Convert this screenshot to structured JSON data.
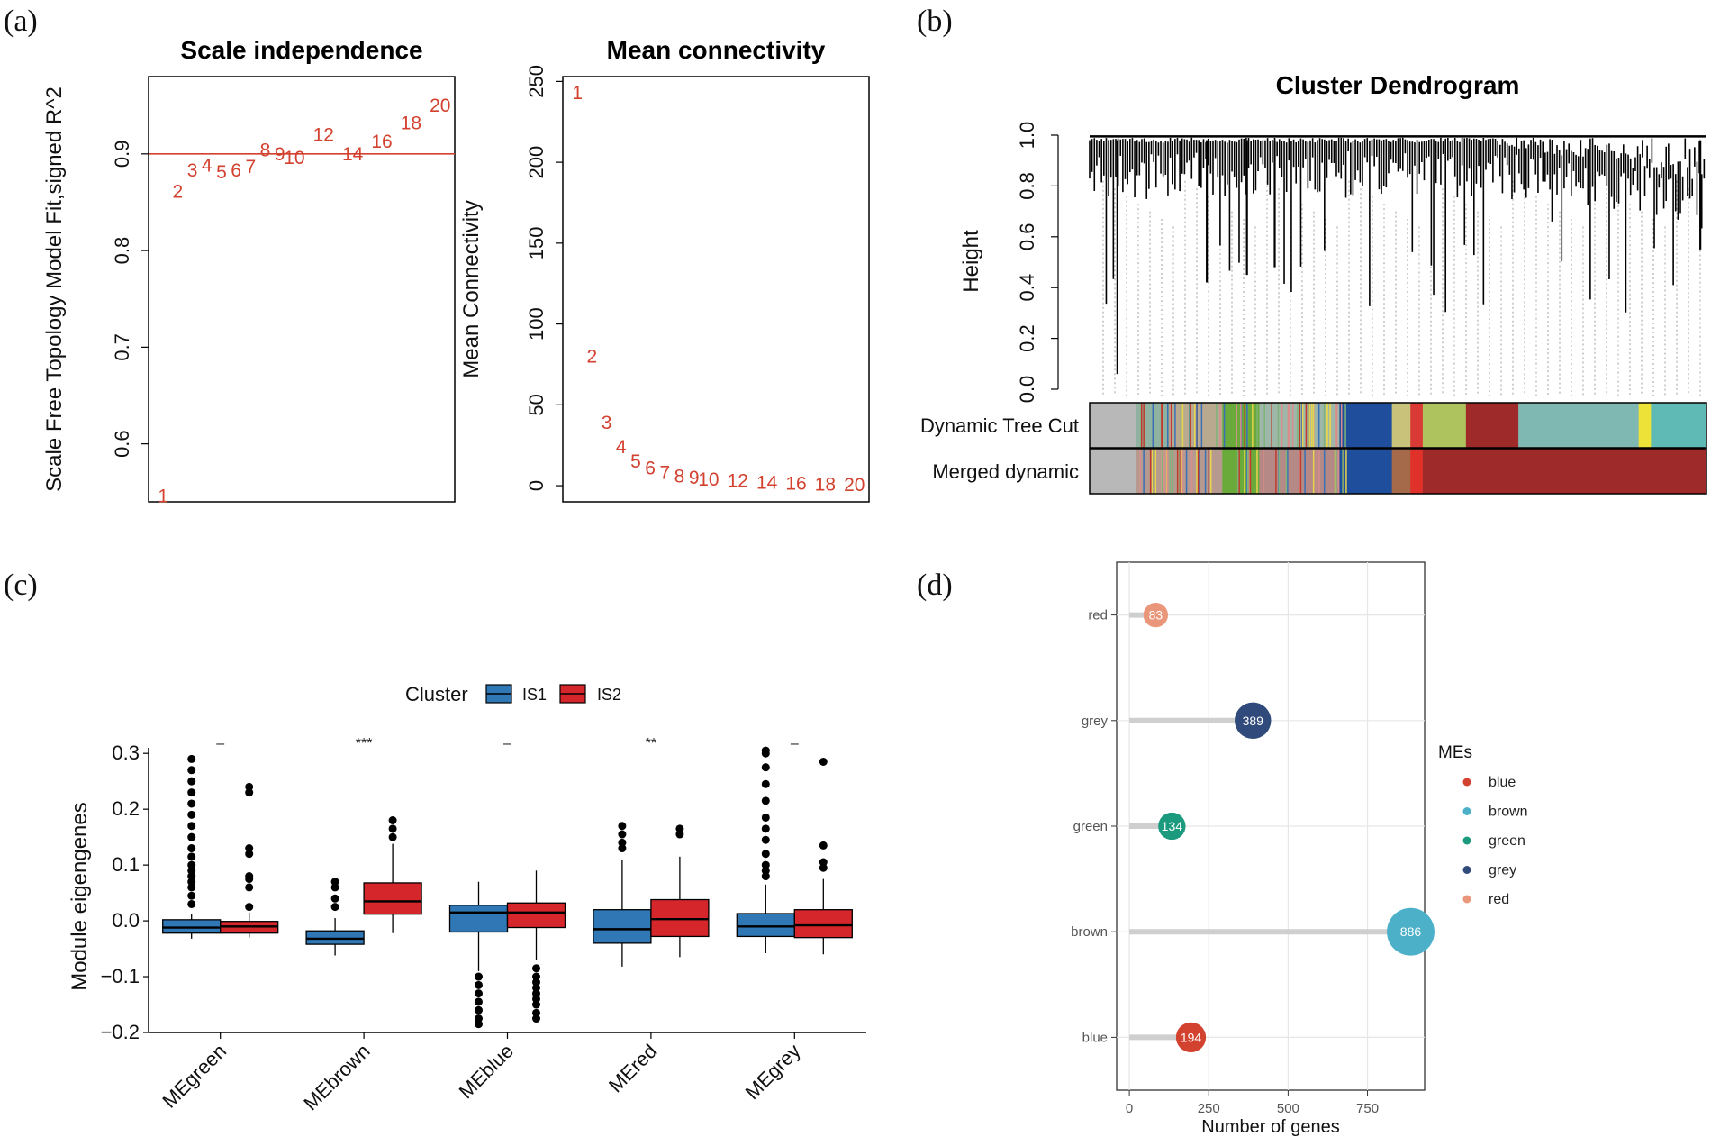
{
  "panels": {
    "a": "(a)",
    "b": "(b)",
    "c": "(c)",
    "d": "(d)"
  },
  "chart_data": [
    {
      "id": "scale_independence",
      "type": "scatter",
      "title": "Scale independence",
      "xlabel": "",
      "ylabel": "Scale Free Topology Model Fit,signed R^2",
      "x": [
        1,
        2,
        3,
        4,
        5,
        6,
        7,
        8,
        9,
        10,
        12,
        14,
        16,
        18,
        20
      ],
      "y": [
        0.546,
        0.861,
        0.883,
        0.888,
        0.881,
        0.883,
        0.887,
        0.904,
        0.9,
        0.896,
        0.92,
        0.9,
        0.913,
        0.932,
        0.95
      ],
      "point_labels": [
        "1",
        "2",
        "3",
        "4",
        "5",
        "6",
        "7",
        "8",
        "9",
        "10",
        "12",
        "14",
        "16",
        "18",
        "20"
      ],
      "hline": 0.9,
      "xlim": [
        0,
        21
      ],
      "ylim": [
        0.54,
        0.98
      ],
      "yticks": [
        0.6,
        0.7,
        0.8,
        0.9
      ],
      "ytick_labels": [
        "0.6",
        "0.7",
        "0.8",
        "0.9"
      ],
      "color": "#d3412f"
    },
    {
      "id": "mean_connectivity",
      "type": "scatter",
      "title": "Mean connectivity",
      "xlabel": "",
      "ylabel": "Mean Connectivity",
      "x": [
        1,
        2,
        3,
        4,
        5,
        6,
        7,
        8,
        9,
        10,
        12,
        14,
        16,
        18,
        20
      ],
      "y": [
        243,
        80,
        39,
        24,
        15,
        11,
        8,
        6,
        5,
        4,
        3,
        2,
        1.5,
        1,
        0.5
      ],
      "point_labels": [
        "1",
        "2",
        "3",
        "4",
        "5",
        "6",
        "7",
        "8",
        "9",
        "10",
        "12",
        "14",
        "16",
        "18",
        "20"
      ],
      "xlim": [
        0,
        21
      ],
      "ylim": [
        -10,
        253
      ],
      "yticks": [
        0,
        50,
        100,
        150,
        200,
        250
      ],
      "ytick_labels": [
        "0",
        "50",
        "100",
        "150",
        "200",
        "250"
      ],
      "color": "#d3412f"
    },
    {
      "id": "cluster_dendrogram",
      "type": "dendrogram",
      "title": "Cluster Dendrogram",
      "ylabel": "Height",
      "ylim": [
        0,
        1.0
      ],
      "yticks": [
        0.0,
        0.2,
        0.4,
        0.6,
        0.8,
        1.0
      ],
      "ytick_labels": [
        "0.0",
        "0.2",
        "0.4",
        "0.6",
        "0.8",
        "1.0"
      ],
      "row_labels": [
        "Dynamic Tree Cut",
        "Merged dynamic"
      ],
      "dynamic_segments": [
        {
          "color": "#b8b8b8",
          "from": 0.0,
          "to": 0.075
        },
        {
          "color": "#8fb3a0",
          "from": 0.075,
          "to": 0.135
        },
        {
          "color": "#b9a98f",
          "from": 0.135,
          "to": 0.215
        },
        {
          "color": "#6aaa3a",
          "from": 0.215,
          "to": 0.275
        },
        {
          "color": "#9fb7a8",
          "from": 0.275,
          "to": 0.405
        },
        {
          "color": "#1f4e9c",
          "from": 0.405,
          "to": 0.49
        },
        {
          "color": "#c9c27a",
          "from": 0.49,
          "to": 0.52
        },
        {
          "color": "#d93a36",
          "from": 0.52,
          "to": 0.54
        },
        {
          "color": "#aec25e",
          "from": 0.54,
          "to": 0.61
        },
        {
          "color": "#9e2a2a",
          "from": 0.61,
          "to": 0.695
        },
        {
          "color": "#7fb7b2",
          "from": 0.695,
          "to": 0.89
        },
        {
          "color": "#ece238",
          "from": 0.89,
          "to": 0.91
        },
        {
          "color": "#5fb9b5",
          "from": 0.91,
          "to": 1.0
        }
      ],
      "merged_segments": [
        {
          "color": "#b8b8b8",
          "from": 0.0,
          "to": 0.075
        },
        {
          "color": "#b79a8f",
          "from": 0.075,
          "to": 0.215
        },
        {
          "color": "#6aaa3a",
          "from": 0.215,
          "to": 0.275
        },
        {
          "color": "#b58a86",
          "from": 0.275,
          "to": 0.405
        },
        {
          "color": "#1f4e9c",
          "from": 0.405,
          "to": 0.49
        },
        {
          "color": "#a46a4a",
          "from": 0.49,
          "to": 0.52
        },
        {
          "color": "#e0312a",
          "from": 0.52,
          "to": 0.54
        },
        {
          "color": "#9e2a2a",
          "from": 0.54,
          "to": 1.0
        }
      ]
    },
    {
      "id": "module_eigengenes",
      "type": "box",
      "xlabel": "",
      "ylabel": "Module eigengenes",
      "legend_title": "Cluster",
      "legend_items": [
        {
          "name": "IS1",
          "color": "#2f77b5"
        },
        {
          "name": "IS2",
          "color": "#d5262b"
        }
      ],
      "categories": [
        "MEgreen",
        "MEbrown",
        "MEblue",
        "MEred",
        "MEgrey"
      ],
      "significance": [
        "–",
        "***",
        "–",
        "**",
        "–"
      ],
      "ylim": [
        -0.2,
        0.31
      ],
      "yticks": [
        -0.2,
        -0.1,
        0.0,
        0.1,
        0.2,
        0.3
      ],
      "ytick_labels": [
        "−0.2",
        "−0.1",
        "0.0",
        "0.1",
        "0.2",
        "0.3"
      ],
      "series": [
        {
          "name": "IS1",
          "boxes": [
            {
              "q1": -0.022,
              "median": -0.012,
              "q3": 0.002,
              "wlo": -0.032,
              "whi": 0.012,
              "outliers": [
                0.03,
                0.045,
                0.06,
                0.07,
                0.08,
                0.09,
                0.1,
                0.115,
                0.13,
                0.15,
                0.17,
                0.19,
                0.21,
                0.23,
                0.25,
                0.27,
                0.29
              ]
            },
            {
              "q1": -0.042,
              "median": -0.032,
              "q3": -0.018,
              "wlo": -0.062,
              "whi": 0.005,
              "outliers": [
                0.025,
                0.04,
                0.06,
                0.07
              ]
            },
            {
              "q1": -0.02,
              "median": 0.015,
              "q3": 0.028,
              "wlo": -0.09,
              "whi": 0.07,
              "outliers": [
                -0.1,
                -0.115,
                -0.13,
                -0.145,
                -0.16,
                -0.175,
                -0.185
              ]
            },
            {
              "q1": -0.04,
              "median": -0.015,
              "q3": 0.02,
              "wlo": -0.082,
              "whi": 0.11,
              "outliers": [
                0.13,
                0.14,
                0.155,
                0.17
              ]
            },
            {
              "q1": -0.028,
              "median": -0.01,
              "q3": 0.013,
              "wlo": -0.058,
              "whi": 0.065,
              "outliers": [
                0.08,
                0.09,
                0.1,
                0.12,
                0.145,
                0.165,
                0.185,
                0.215,
                0.245,
                0.275,
                0.3,
                0.305
              ]
            }
          ]
        },
        {
          "name": "IS2",
          "boxes": [
            {
              "q1": -0.022,
              "median": -0.01,
              "q3": -0.001,
              "wlo": -0.03,
              "whi": 0.015,
              "outliers": [
                0.025,
                0.06,
                0.075,
                0.08,
                0.12,
                0.13,
                0.23,
                0.24
              ]
            },
            {
              "q1": 0.012,
              "median": 0.035,
              "q3": 0.068,
              "wlo": -0.022,
              "whi": 0.138,
              "outliers": [
                0.15,
                0.165,
                0.18
              ]
            },
            {
              "q1": -0.012,
              "median": 0.015,
              "q3": 0.032,
              "wlo": -0.07,
              "whi": 0.09,
              "outliers": [
                -0.085,
                -0.1,
                -0.11,
                -0.12,
                -0.13,
                -0.14,
                -0.15,
                -0.165,
                -0.175
              ]
            },
            {
              "q1": -0.028,
              "median": 0.003,
              "q3": 0.038,
              "wlo": -0.065,
              "whi": 0.115,
              "outliers": [
                0.155,
                0.165
              ]
            },
            {
              "q1": -0.03,
              "median": -0.008,
              "q3": 0.02,
              "wlo": -0.06,
              "whi": 0.075,
              "outliers": [
                0.095,
                0.105,
                0.135,
                0.285
              ]
            }
          ]
        }
      ]
    },
    {
      "id": "number_of_genes",
      "type": "lollipop",
      "xlabel": "Number of genes",
      "ylabel": "",
      "legend_title": "MEs",
      "legend_items": [
        {
          "name": "blue",
          "color": "#d3412f"
        },
        {
          "name": "brown",
          "color": "#4db0c9"
        },
        {
          "name": "green",
          "color": "#1b9a7e"
        },
        {
          "name": "grey",
          "color": "#2f4a7b"
        },
        {
          "name": "red",
          "color": "#e9967a"
        }
      ],
      "categories": [
        "red",
        "grey",
        "green",
        "brown",
        "blue"
      ],
      "values": [
        83,
        389,
        134,
        886,
        194
      ],
      "value_labels": [
        "83",
        "389",
        "134",
        "886",
        "194"
      ],
      "colors": [
        "#e9967a",
        "#2f4a7b",
        "#1b9a7e",
        "#4db0c9",
        "#d3412f"
      ],
      "xlim": [
        -40,
        930
      ],
      "xticks": [
        0,
        250,
        500,
        750
      ],
      "xtick_labels": [
        "0",
        "250",
        "500",
        "750"
      ]
    }
  ]
}
